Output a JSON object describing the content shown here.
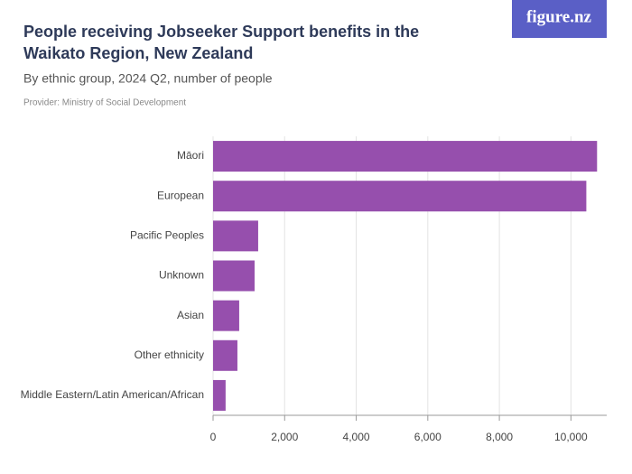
{
  "chart_data": {
    "type": "bar",
    "orientation": "horizontal",
    "title": "People receiving Jobseeker Support benefits in the Waikato Region, New Zealand",
    "subtitle": "By ethnic group, 2024 Q2, number of people",
    "provider": "Provider: Ministry of Social Development",
    "logo": "figure.nz",
    "categories": [
      "Māori",
      "European",
      "Pacific Peoples",
      "Unknown",
      "Asian",
      "Other ethnicity",
      "Middle Eastern/Latin American/African"
    ],
    "values": [
      10730,
      10430,
      1260,
      1160,
      730,
      680,
      350
    ],
    "color": "#964fad",
    "xlim": [
      0,
      11000
    ],
    "xticks": [
      0,
      {
        "value": 2000,
        "label": "2,000"
      },
      {
        "value": 4000,
        "label": "4,000"
      },
      {
        "value": 6000,
        "label": "6,000"
      },
      {
        "value": 8000,
        "label": "8,000"
      },
      {
        "value": 10000,
        "label": "10,000"
      }
    ],
    "grid": true
  }
}
